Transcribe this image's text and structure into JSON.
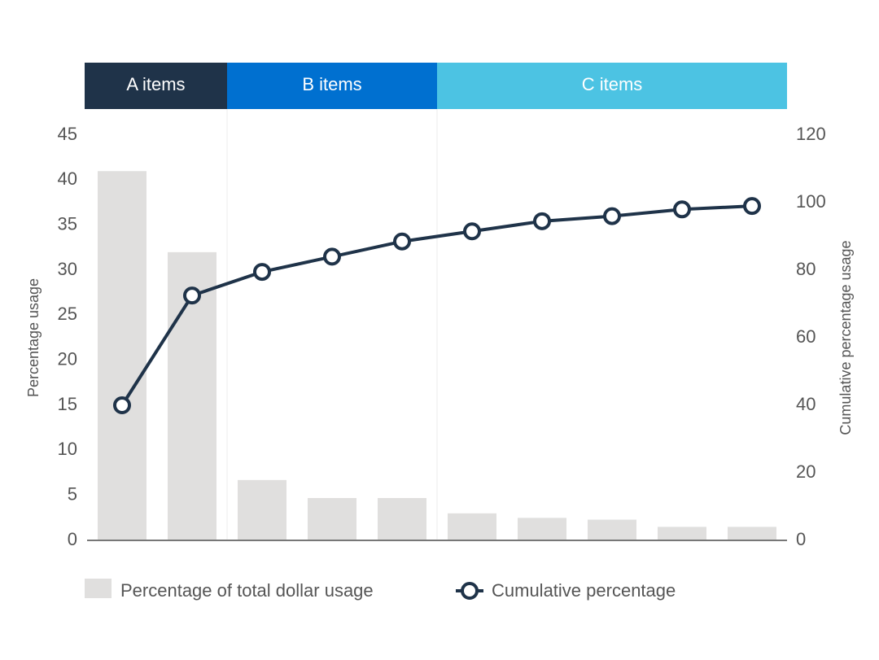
{
  "chart_data": {
    "type": "pareto",
    "categories": [
      null,
      null,
      null,
      null,
      null,
      null,
      null,
      null,
      null,
      null
    ],
    "groups": [
      {
        "label": "A items",
        "categories": 2,
        "color": "#1f3349"
      },
      {
        "label": "B items",
        "categories": 3,
        "color": "#0070d0"
      },
      {
        "label": "C items",
        "categories": 5,
        "color": "#4cc3e3"
      }
    ],
    "series": [
      {
        "name": "Percentage of total dollar usage",
        "type": "bar",
        "color": "#e0dfde",
        "values": [
          41,
          32,
          6.7,
          4.7,
          4.7,
          3,
          2.5,
          2.3,
          1.5,
          1.5
        ]
      },
      {
        "name": "Cumulative percentage",
        "type": "line",
        "axis": "y2",
        "color": "#1f3349",
        "values": [
          40,
          72.5,
          79.5,
          84,
          88.5,
          91.5,
          94.5,
          96,
          98,
          99
        ]
      }
    ],
    "ylabel": "Percentage usage",
    "y2label": "Cumulative percentage usage",
    "ylim": [
      0,
      45
    ],
    "yticks": [
      0,
      5,
      10,
      15,
      20,
      25,
      30,
      35,
      40,
      45
    ],
    "y2lim": [
      0,
      120
    ],
    "y2ticks": [
      0,
      20,
      40,
      60,
      80,
      100,
      120
    ]
  }
}
